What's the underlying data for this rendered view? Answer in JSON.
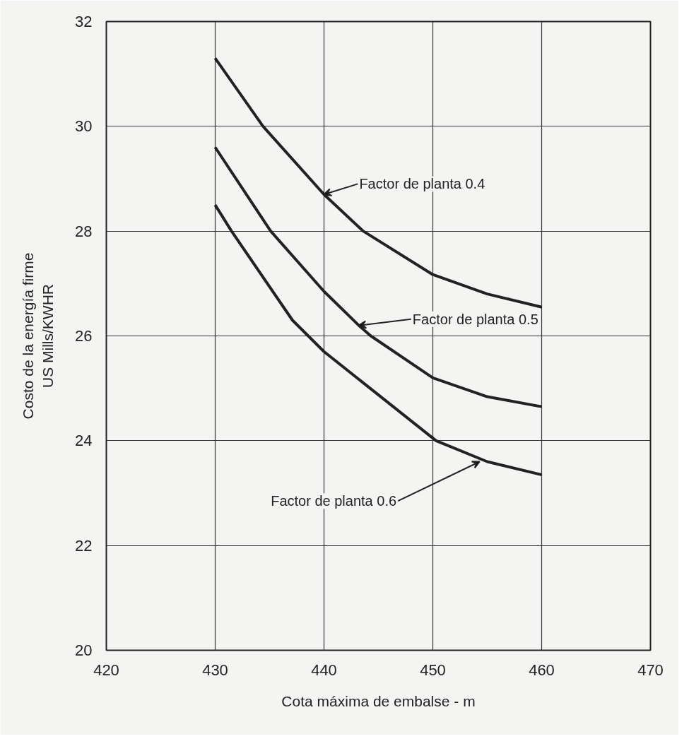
{
  "chart_data": {
    "type": "line",
    "xlabel": "Cota máxima de embalse - m",
    "ylabel": "Costo de la energía firme\nUS Mills/KWHR",
    "xlim": [
      420,
      470
    ],
    "ylim": [
      20,
      32
    ],
    "xticks": [
      420,
      430,
      440,
      450,
      460,
      470
    ],
    "yticks": [
      20,
      22,
      24,
      26,
      28,
      30,
      32
    ],
    "grid": true,
    "line_style": "solid",
    "marker": "none",
    "series": [
      {
        "color": "#222222",
        "x": [
          430,
          434.4,
          440,
          443.6,
          450,
          455,
          460
        ],
        "values": [
          31.3,
          30.0,
          28.7,
          28.0,
          27.17,
          26.8,
          26.55
        ]
      },
      {
        "color": "#222222",
        "x": [
          430,
          435.1,
          440,
          443.2,
          444.3,
          450,
          455,
          460
        ],
        "values": [
          29.6,
          28.0,
          26.85,
          26.2,
          26.0,
          25.2,
          24.84,
          24.65
        ]
      },
      {
        "color": "#222222",
        "x": [
          430,
          431.5,
          437.1,
          440,
          450.3,
          455,
          460
        ],
        "values": [
          28.5,
          28.0,
          26.3,
          25.7,
          24.0,
          23.6,
          23.35
        ]
      }
    ],
    "annotations": [
      {
        "text": "Factor de planta 0.4",
        "x": 440,
        "y": 28.7
      },
      {
        "text": "Factor de planta 0.5",
        "x": 443.2,
        "y": 26.2
      },
      {
        "text": "Factor de planta 0.6",
        "x": 454.3,
        "y": 23.6
      }
    ]
  }
}
